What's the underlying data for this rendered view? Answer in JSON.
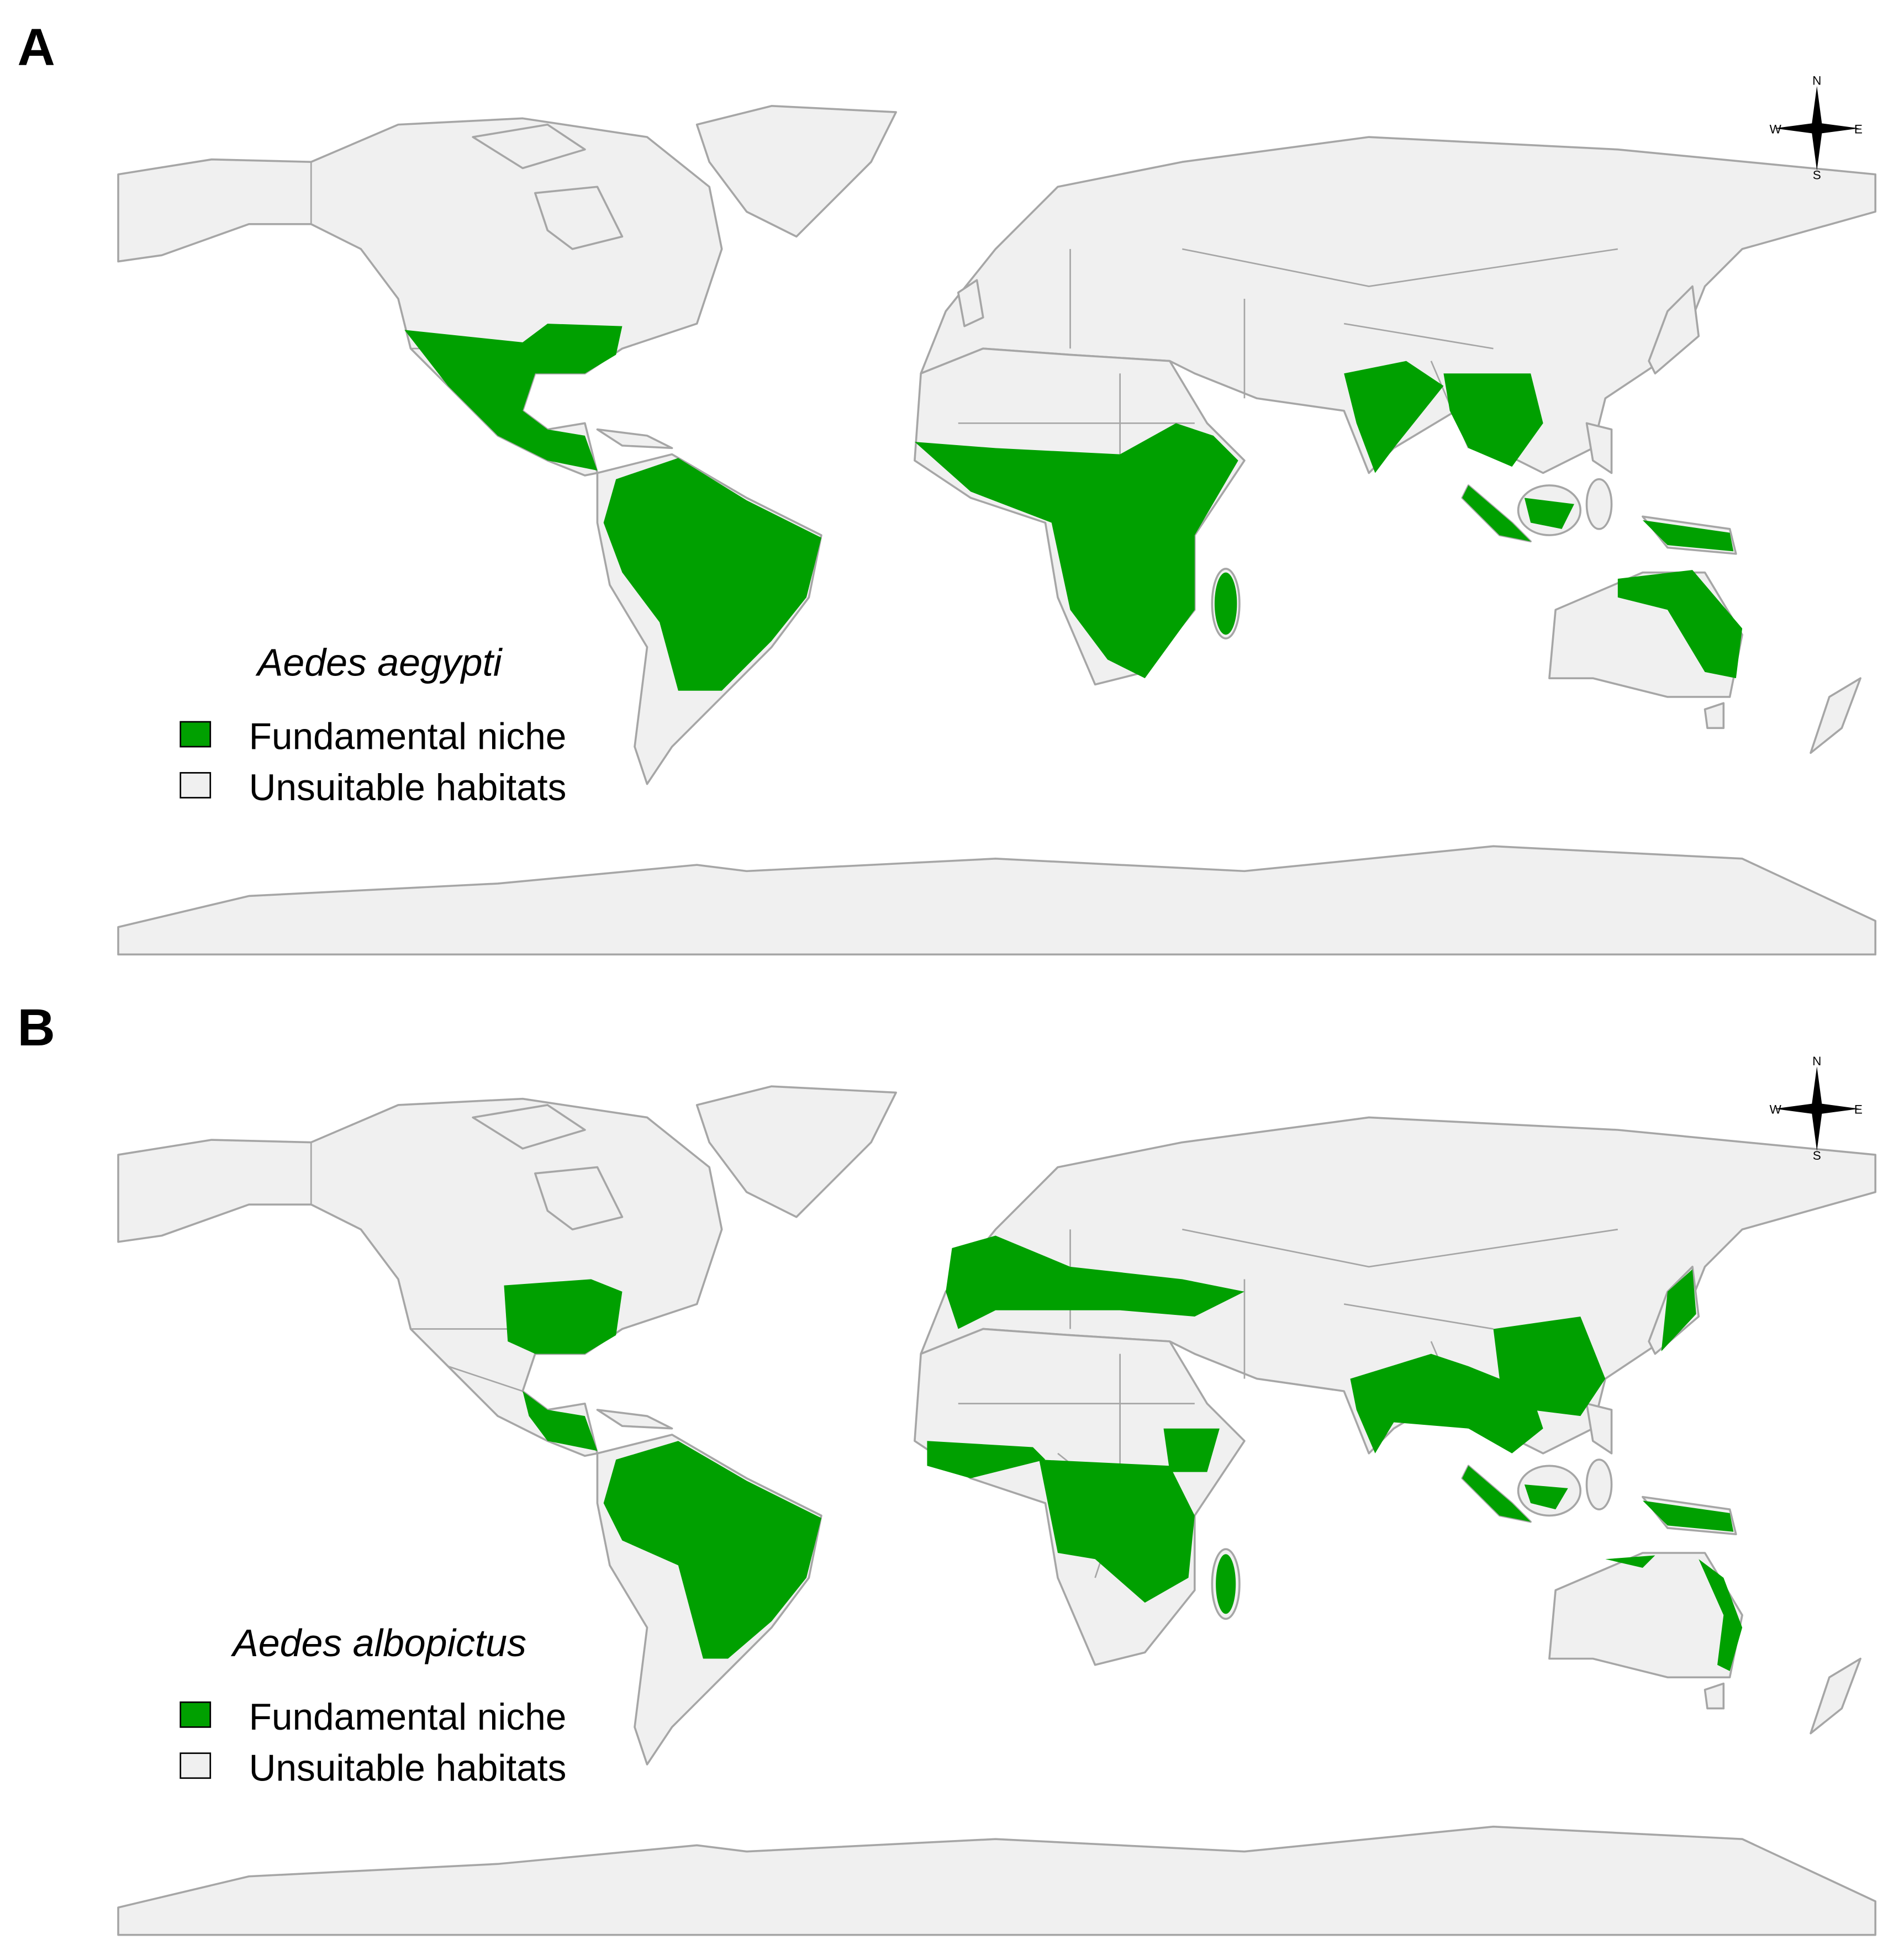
{
  "panels": [
    {
      "label": "A",
      "species": "Aedes aegypti",
      "legend": [
        {
          "label": "Fundamental niche",
          "color": "#00a000"
        },
        {
          "label": "Unsuitable habitats",
          "color": "#f0f0f0"
        }
      ],
      "compass": {
        "n": "N",
        "e": "E",
        "s": "S",
        "w": "W"
      }
    },
    {
      "label": "B",
      "species": "Aedes albopictus",
      "legend": [
        {
          "label": "Fundamental niche",
          "color": "#00a000"
        },
        {
          "label": "Unsuitable habitats",
          "color": "#f0f0f0"
        }
      ],
      "compass": {
        "n": "N",
        "e": "E",
        "s": "S",
        "w": "W"
      }
    }
  ]
}
